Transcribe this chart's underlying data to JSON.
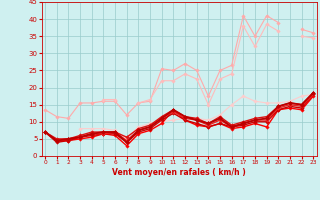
{
  "x": [
    0,
    1,
    2,
    3,
    4,
    5,
    6,
    7,
    8,
    9,
    10,
    11,
    12,
    13,
    14,
    15,
    16,
    17,
    18,
    19,
    20,
    21,
    22,
    23
  ],
  "series": [
    {
      "color": "#ffaaaa",
      "lw": 0.8,
      "marker": "D",
      "ms": 1.8,
      "y": [
        13.5,
        11.5,
        11.0,
        15.5,
        15.5,
        16.0,
        16.0,
        12.0,
        15.5,
        16.0,
        25.5,
        25.0,
        27.0,
        25.0,
        17.5,
        25.0,
        26.5,
        41.0,
        35.0,
        41.0,
        39.0,
        null,
        37.0,
        36.0
      ]
    },
    {
      "color": "#ffbbbb",
      "lw": 0.8,
      "marker": "D",
      "ms": 1.8,
      "y": [
        null,
        null,
        null,
        null,
        null,
        16.5,
        16.5,
        null,
        15.5,
        16.5,
        22.0,
        22.0,
        24.0,
        22.5,
        15.0,
        22.5,
        24.0,
        38.0,
        32.0,
        38.5,
        36.5,
        null,
        35.0,
        34.5
      ]
    },
    {
      "color": "#ffcccc",
      "lw": 0.8,
      "marker": "D",
      "ms": 1.8,
      "y": [
        null,
        null,
        null,
        8.0,
        8.0,
        8.0,
        7.5,
        5.0,
        8.5,
        9.5,
        10.0,
        10.5,
        11.0,
        11.0,
        10.5,
        12.0,
        15.0,
        17.5,
        16.0,
        15.5,
        15.5,
        16.0,
        17.5,
        18.0
      ]
    },
    {
      "color": "#ff0000",
      "lw": 1.0,
      "marker": "D",
      "ms": 1.8,
      "y": [
        7.0,
        4.5,
        4.5,
        5.0,
        5.5,
        6.5,
        6.0,
        3.0,
        6.5,
        7.5,
        9.5,
        13.5,
        10.5,
        9.0,
        8.5,
        9.5,
        8.0,
        8.5,
        9.5,
        8.5,
        13.5,
        14.0,
        13.5,
        17.5
      ]
    },
    {
      "color": "#cc0000",
      "lw": 1.0,
      "marker": "D",
      "ms": 1.8,
      "y": [
        7.0,
        4.0,
        4.5,
        5.5,
        6.0,
        6.5,
        6.5,
        4.0,
        7.0,
        8.0,
        10.5,
        12.5,
        10.5,
        9.5,
        8.5,
        9.5,
        8.5,
        9.0,
        10.0,
        10.0,
        13.5,
        14.5,
        14.0,
        18.0
      ]
    },
    {
      "color": "#ee2222",
      "lw": 1.0,
      "marker": "D",
      "ms": 1.8,
      "y": [
        7.0,
        4.5,
        5.0,
        5.5,
        6.5,
        6.5,
        7.0,
        4.5,
        7.5,
        8.5,
        11.0,
        13.0,
        11.0,
        10.5,
        9.0,
        10.5,
        8.5,
        9.5,
        10.5,
        10.5,
        14.0,
        15.0,
        14.5,
        18.0
      ]
    },
    {
      "color": "#dd1111",
      "lw": 1.0,
      "marker": "D",
      "ms": 1.8,
      "y": [
        7.0,
        5.0,
        5.0,
        6.0,
        7.0,
        7.0,
        7.0,
        5.5,
        8.0,
        9.0,
        11.5,
        13.5,
        11.5,
        11.0,
        9.5,
        11.5,
        9.0,
        10.0,
        11.0,
        11.5,
        14.5,
        15.5,
        15.0,
        18.5
      ]
    },
    {
      "color": "#bb0000",
      "lw": 1.3,
      "marker": "D",
      "ms": 2.0,
      "y": [
        7.0,
        4.5,
        5.0,
        5.5,
        6.5,
        7.0,
        7.0,
        4.0,
        7.5,
        8.5,
        11.0,
        13.5,
        11.5,
        10.5,
        9.5,
        11.0,
        8.5,
        9.5,
        10.5,
        11.0,
        14.5,
        15.5,
        15.0,
        18.5
      ]
    }
  ],
  "xlim": [
    -0.3,
    23.3
  ],
  "ylim": [
    0,
    45
  ],
  "yticks": [
    0,
    5,
    10,
    15,
    20,
    25,
    30,
    35,
    40,
    45
  ],
  "xticks": [
    0,
    1,
    2,
    3,
    4,
    5,
    6,
    7,
    8,
    9,
    10,
    11,
    12,
    13,
    14,
    15,
    16,
    17,
    18,
    19,
    20,
    21,
    22,
    23
  ],
  "xlabel": "Vent moyen/en rafales ( km/h )",
  "bg_color": "#cff0f0",
  "grid_color": "#99cccc",
  "text_color": "#cc0000",
  "axis_color": "#cc0000",
  "xlabel_fontsize": 5.5,
  "tick_fontsize_x": 4.2,
  "tick_fontsize_y": 5.0
}
